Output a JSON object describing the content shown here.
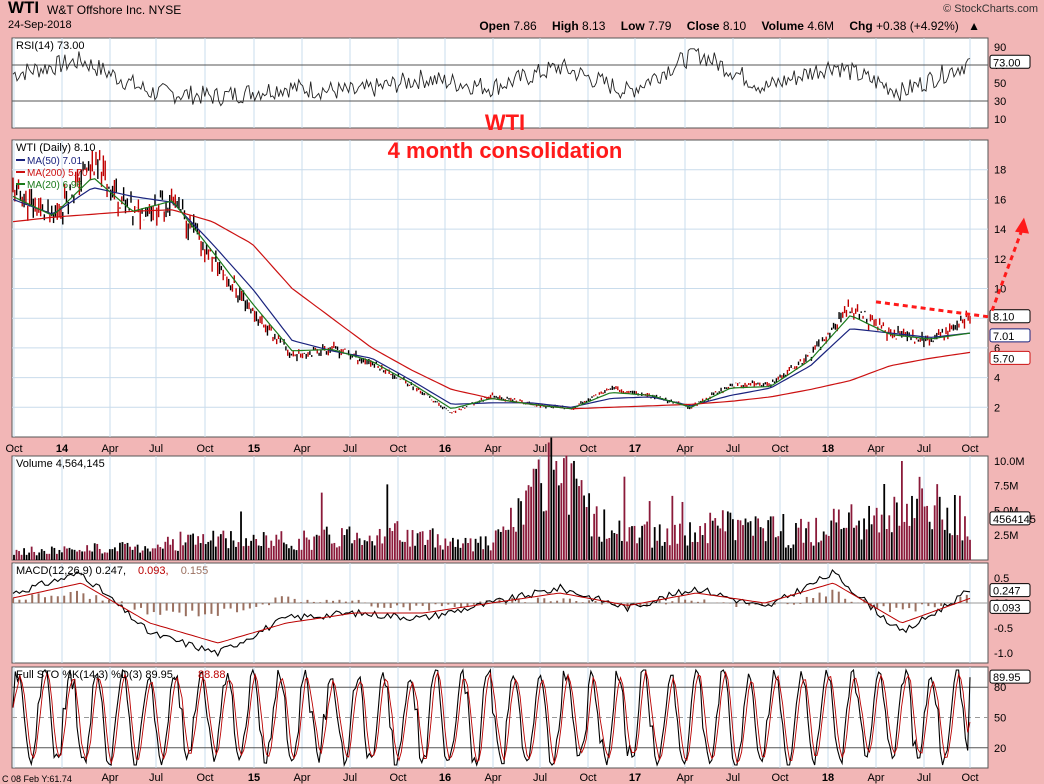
{
  "header": {
    "symbol": "WTI",
    "company": "W&T Offshore Inc. NYSE",
    "date": "24-Sep-2018",
    "brand": "© StockCharts.com",
    "open_label": "Open",
    "open": "7.86",
    "high_label": "High",
    "high": "8.13",
    "low_label": "Low",
    "low": "7.79",
    "close_label": "Close",
    "close": "8.10",
    "volume_label": "Volume",
    "volume": "4.6M",
    "chg_label": "Chg",
    "chg": "+0.38 (+4.92%)",
    "chg_arrow": "▲"
  },
  "annotation": {
    "title": "WTI",
    "subtitle": "4 month consolidation",
    "color": "#ff1a1a"
  },
  "corner_note": "C 08 Feb Y:61.74",
  "colors": {
    "background": "#f2b6b6",
    "panel": "#ffffff",
    "grid": "#c9dcec",
    "price": "#000000",
    "ma50": "#1a237e",
    "ma200": "#cc1111",
    "ma20": "#1b7a1b",
    "volume_up": "#000000",
    "volume_down": "#8b1a3a",
    "histogram": "#9a7060",
    "annotation": "#ff1a1a"
  },
  "chart_data": [
    {
      "type": "line",
      "panel": "rsi",
      "title": "RSI(14) 73.00",
      "yticks": [
        90,
        70,
        50,
        30,
        10
      ],
      "ylim": [
        0,
        100
      ],
      "last_value_label": "73.00",
      "series": [
        {
          "x": [
            "Oct '13",
            "Apr '14",
            "Jul '14",
            "Oct '14",
            "Jan '15",
            "Jul '15",
            "Jan '16",
            "Jul '16",
            "Jan '17",
            "Jul '17",
            "Oct '17",
            "Jan '18",
            "Apr '18",
            "Jul '18",
            "Sep '18"
          ],
          "values": [
            60,
            75,
            40,
            35,
            45,
            40,
            55,
            45,
            68,
            40,
            84,
            45,
            70,
            40,
            73
          ]
        }
      ]
    },
    {
      "type": "line",
      "panel": "price",
      "title": "WTI (Daily) 8.10",
      "ylim": [
        0,
        20
      ],
      "yticks": [
        18,
        16,
        14,
        12,
        10,
        8,
        6,
        4,
        2
      ],
      "x_ticks": [
        "Oct",
        "14",
        "Apr",
        "Jul",
        "Oct",
        "15",
        "Apr",
        "Jul",
        "Oct",
        "16",
        "Apr",
        "Jul",
        "Oct",
        "17",
        "Apr",
        "Jul",
        "Oct",
        "18",
        "Apr",
        "Jul",
        "Oct"
      ],
      "x": [
        "Oct '13",
        "Jan '14",
        "Apr '14",
        "May '14",
        "Jul '14",
        "Oct '14",
        "Nov '14",
        "Jan '15",
        "Apr '15",
        "Jul '15",
        "Oct '15",
        "Jan '16",
        "Apr '16",
        "Jul '16",
        "Oct '16",
        "Dec '16",
        "Apr '17",
        "Jul '17",
        "Oct '17",
        "Jan '18",
        "Mar '18",
        "May '18",
        "Jul '18",
        "Aug '18",
        "Sep '18"
      ],
      "series": [
        {
          "name": "WTI (Daily) 8.10",
          "values": [
            16.5,
            14.8,
            18.5,
            15.0,
            16.0,
            12.0,
            8.5,
            5.5,
            6.0,
            5.0,
            3.5,
            1.6,
            2.8,
            2.2,
            1.9,
            3.3,
            2.8,
            2.0,
            3.5,
            3.5,
            5.5,
            8.7,
            7.0,
            6.5,
            8.1
          ]
        },
        {
          "name": "MA(50) 7.01",
          "values": [
            16.0,
            15.0,
            16.8,
            16.2,
            15.8,
            13.0,
            10.0,
            6.5,
            5.8,
            5.3,
            3.8,
            2.2,
            2.3,
            2.3,
            2.0,
            2.6,
            2.7,
            2.1,
            2.8,
            3.3,
            4.8,
            7.3,
            7.0,
            6.7,
            7.0
          ]
        },
        {
          "name": "MA(200) 5.70",
          "values": [
            14.5,
            14.8,
            15.0,
            15.2,
            15.3,
            14.5,
            13.0,
            10.0,
            8.0,
            6.0,
            4.5,
            3.2,
            2.6,
            2.2,
            1.9,
            2.0,
            2.1,
            2.2,
            2.4,
            2.7,
            3.2,
            3.8,
            4.8,
            5.3,
            5.7
          ]
        },
        {
          "name": "MA(20) 6.96",
          "values": [
            16.2,
            14.9,
            17.5,
            15.2,
            15.9,
            12.5,
            9.0,
            5.8,
            5.9,
            5.1,
            3.6,
            1.9,
            2.6,
            2.2,
            1.9,
            3.0,
            2.8,
            2.0,
            3.3,
            3.4,
            5.2,
            8.2,
            6.9,
            6.6,
            7.0
          ]
        }
      ],
      "last_value_labels": [
        "8.10",
        "7.01",
        "5.70"
      ],
      "annotations": {
        "resistance_line": {
          "x": [
            "Apr '18",
            "Oct '18"
          ],
          "y": [
            9.1,
            8.1
          ]
        },
        "breakout_arrow": {
          "x": [
            "Oct '18",
            "Oct '18"
          ],
          "y": [
            8.5,
            14.5
          ]
        }
      }
    },
    {
      "type": "bar",
      "panel": "volume",
      "title": "Volume 4,564,145",
      "yticks_labels": [
        "10.0M",
        "7.5M",
        "5.0M",
        "2.5M"
      ],
      "yticks": [
        10.0,
        7.5,
        5.0,
        2.5
      ],
      "ylim": [
        0,
        10.5
      ],
      "last_value_label": "4564145",
      "x": [
        "Oct '13",
        "Jan '14",
        "Jul '14",
        "Jan '15",
        "Jul '15",
        "Jan '16",
        "Apr '16",
        "Jul '16",
        "Oct '16",
        "Dec '16",
        "Apr '17",
        "Jul '17",
        "Oct '17",
        "Jan '18",
        "Apr '18",
        "Jul '18",
        "Sep '18"
      ],
      "values": [
        1.0,
        1.2,
        1.5,
        2.5,
        2.2,
        2.5,
        3.5,
        2.5,
        2.0,
        9.8,
        3.5,
        2.8,
        4.5,
        3.0,
        4.5,
        7.5,
        4.56
      ]
    },
    {
      "type": "line",
      "panel": "macd",
      "title": "MACD(12,26,9) 0.247, 0.093, 0.155",
      "title_parts": [
        "MACD(12,26,9) 0.247,",
        "0.093,",
        "0.155"
      ],
      "yticks": [
        0.5,
        0.0,
        -0.5,
        -1.0
      ],
      "ytick_labels": [
        "0.5",
        "0.0",
        "-0.5",
        "-1.0"
      ],
      "ylim": [
        -1.2,
        0.8
      ],
      "last_value_labels": [
        "0.247",
        "0.093"
      ],
      "x": [
        "Oct '13",
        "Apr '14",
        "Jul '14",
        "Oct '14",
        "Jan '15",
        "Jul '15",
        "Jan '16",
        "Jul '16",
        "Jan '17",
        "Jul '17",
        "Oct '17",
        "Jan '18",
        "Apr '18",
        "Jul '18",
        "Sep '18"
      ],
      "series": [
        {
          "values": [
            0.2,
            0.6,
            -0.6,
            -1.0,
            -0.3,
            -0.2,
            -0.3,
            0.0,
            0.3,
            -0.1,
            0.3,
            -0.1,
            0.6,
            -0.6,
            0.247
          ]
        },
        {
          "values": [
            0.1,
            0.4,
            -0.4,
            -0.8,
            -0.4,
            -0.2,
            -0.2,
            0.0,
            0.2,
            -0.05,
            0.2,
            0.0,
            0.4,
            -0.4,
            0.093
          ]
        }
      ]
    },
    {
      "type": "line",
      "panel": "stochastic",
      "title": "Full STO %K(14,3) %D(3) 89.95, 88.88",
      "title_parts": [
        "Full STO %K(14,3) %D(3) 89.95,",
        "88.88"
      ],
      "yticks": [
        80,
        50,
        20
      ],
      "ylim": [
        0,
        100
      ],
      "last_value_label": "89.95",
      "x_ticks": [
        "Apr",
        "Jul",
        "Oct",
        "15",
        "Apr",
        "Jul",
        "Oct",
        "16",
        "Apr",
        "Jul",
        "Oct",
        "17",
        "Apr",
        "Jul",
        "Oct",
        "18",
        "Apr",
        "Jul",
        "Oct"
      ],
      "series": [
        {
          "values": [
            80,
            20,
            85,
            10,
            75,
            15,
            90,
            20,
            70,
            10,
            85,
            25,
            90,
            15,
            80,
            10,
            95,
            20,
            90
          ]
        }
      ]
    }
  ]
}
